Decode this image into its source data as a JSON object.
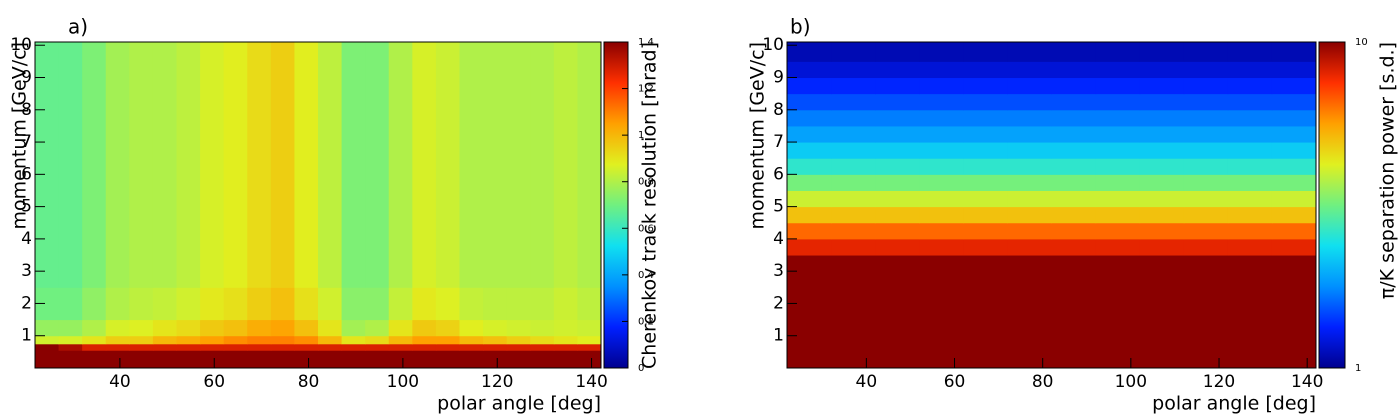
{
  "chart_data": [
    {
      "type": "heatmap",
      "label": "a)",
      "xlabel": "polar angle [deg]",
      "ylabel": "momentum [GeV/c]",
      "zlabel": "Cherenkov track resolution [mrad]",
      "xlim": [
        22,
        142
      ],
      "ylim": [
        0,
        10.1
      ],
      "xticks": [
        40,
        60,
        80,
        100,
        120,
        140
      ],
      "yticks": [
        1,
        2,
        3,
        4,
        5,
        6,
        7,
        8,
        9,
        10
      ],
      "zlim": [
        0,
        1.4
      ],
      "zticks": [
        0,
        0.2,
        0.4,
        0.6,
        0.8,
        1,
        1.2,
        1.4
      ],
      "zlog": false,
      "colormap": [
        "#00008f",
        "#0020ff",
        "#0090ff",
        "#10e0f0",
        "#70f080",
        "#e0f020",
        "#ffa000",
        "#ff3000",
        "#8a0000"
      ],
      "xbins": [
        22,
        27,
        32,
        37,
        42,
        47,
        52,
        57,
        62,
        67,
        72,
        77,
        82,
        87,
        92,
        97,
        102,
        107,
        112,
        117,
        122,
        127,
        132,
        137,
        142
      ],
      "ybins": [
        0,
        0.55,
        0.75,
        1,
        1.5,
        2.5,
        10.1
      ],
      "z": [
        [
          1.4,
          1.4,
          1.4,
          1.4,
          1.4,
          1.4,
          1.4,
          1.4,
          1.4,
          1.4,
          1.4,
          1.4,
          1.4,
          1.4,
          1.4,
          1.4,
          1.4,
          1.4,
          1.4,
          1.4,
          1.4,
          1.4,
          1.4,
          1.4
        ],
        [
          1.4,
          1.35,
          1.28,
          1.28,
          1.28,
          1.28,
          1.28,
          1.28,
          1.28,
          1.28,
          1.28,
          1.28,
          1.28,
          1.28,
          1.28,
          1.28,
          1.28,
          1.28,
          1.28,
          1.28,
          1.28,
          1.28,
          1.28,
          1.28
        ],
        [
          0.85,
          0.86,
          0.9,
          0.95,
          0.95,
          1.0,
          1.02,
          1.05,
          1.08,
          1.1,
          1.1,
          1.08,
          1.0,
          0.9,
          0.92,
          1.0,
          1.05,
          1.05,
          1.0,
          0.98,
          0.95,
          0.92,
          0.9,
          0.88
        ],
        [
          0.76,
          0.76,
          0.8,
          0.86,
          0.87,
          0.9,
          0.92,
          0.96,
          0.98,
          1.02,
          1.04,
          0.98,
          0.9,
          0.78,
          0.8,
          0.9,
          0.96,
          0.94,
          0.88,
          0.86,
          0.85,
          0.84,
          0.85,
          0.84
        ],
        [
          0.7,
          0.7,
          0.75,
          0.8,
          0.82,
          0.83,
          0.85,
          0.89,
          0.91,
          0.95,
          0.98,
          0.91,
          0.85,
          0.74,
          0.74,
          0.83,
          0.89,
          0.87,
          0.83,
          0.82,
          0.82,
          0.82,
          0.84,
          0.82
        ],
        [
          0.68,
          0.68,
          0.72,
          0.78,
          0.8,
          0.8,
          0.82,
          0.86,
          0.88,
          0.92,
          0.95,
          0.88,
          0.82,
          0.72,
          0.72,
          0.8,
          0.86,
          0.84,
          0.8,
          0.8,
          0.8,
          0.8,
          0.82,
          0.8
        ]
      ]
    },
    {
      "type": "heatmap",
      "label": "b)",
      "xlabel": "polar angle [deg]",
      "ylabel": "momentum [GeV/c]",
      "zlabel": "π/K separation power [s.d.]",
      "xlim": [
        22,
        142
      ],
      "ylim": [
        0,
        10.1
      ],
      "xticks": [
        40,
        60,
        80,
        100,
        120,
        140
      ],
      "yticks": [
        1,
        2,
        3,
        4,
        5,
        6,
        7,
        8,
        9,
        10
      ],
      "zlim": [
        1,
        10
      ],
      "zticks": [
        1,
        10
      ],
      "zlog": true,
      "colormap": [
        "#00008f",
        "#0020ff",
        "#0090ff",
        "#10e0f0",
        "#70f080",
        "#e0f020",
        "#ffa000",
        "#ff3000",
        "#8a0000"
      ],
      "xbins": [
        22,
        32,
        42,
        52,
        62,
        72,
        82,
        92,
        102,
        112,
        122,
        132,
        142
      ],
      "ybins": [
        0,
        3.5,
        4,
        4.5,
        5,
        5.5,
        6,
        6.5,
        7,
        7.5,
        8,
        8.5,
        9,
        9.5,
        10.1
      ],
      "z": [
        [
          10,
          10,
          10,
          10,
          10,
          10,
          10,
          10,
          10,
          10,
          10,
          10
        ],
        [
          8,
          8,
          8,
          8,
          8,
          8,
          8,
          8,
          8,
          8,
          8,
          8
        ],
        [
          6.5,
          6.5,
          6.5,
          6.5,
          6.5,
          6.5,
          6.5,
          6.5,
          6.5,
          6.5,
          6.5,
          6.5
        ],
        [
          5,
          5,
          5,
          5,
          5,
          5,
          5,
          5,
          5,
          5,
          5,
          5
        ],
        [
          4,
          4,
          4,
          4,
          4,
          4,
          4,
          4,
          4,
          4,
          4,
          4
        ],
        [
          3.2,
          3.2,
          3.2,
          3.2,
          3.2,
          3.2,
          3.2,
          3.2,
          3.2,
          3.2,
          3.2,
          3.2
        ],
        [
          2.6,
          2.6,
          2.6,
          2.6,
          2.6,
          2.6,
          2.6,
          2.6,
          2.6,
          2.6,
          2.6,
          2.6
        ],
        [
          2.2,
          2.2,
          2.2,
          2.2,
          2.2,
          2.2,
          2.2,
          2.2,
          2.2,
          2.2,
          2.2,
          2.2
        ],
        [
          1.9,
          1.9,
          1.9,
          1.9,
          1.9,
          1.9,
          1.9,
          1.9,
          1.9,
          1.9,
          1.9,
          1.9
        ],
        [
          1.7,
          1.7,
          1.7,
          1.7,
          1.7,
          1.7,
          1.7,
          1.7,
          1.7,
          1.7,
          1.7,
          1.7
        ],
        [
          1.5,
          1.5,
          1.5,
          1.5,
          1.5,
          1.5,
          1.5,
          1.5,
          1.5,
          1.5,
          1.5,
          1.5
        ],
        [
          1.35,
          1.35,
          1.35,
          1.35,
          1.35,
          1.35,
          1.35,
          1.35,
          1.35,
          1.35,
          1.35,
          1.35
        ],
        [
          1.2,
          1.2,
          1.2,
          1.2,
          1.2,
          1.2,
          1.2,
          1.2,
          1.2,
          1.2,
          1.2,
          1.2
        ],
        [
          1.1,
          1.1,
          1.1,
          1.1,
          1.1,
          1.1,
          1.1,
          1.1,
          1.1,
          1.1,
          1.1,
          1.1
        ]
      ]
    }
  ]
}
